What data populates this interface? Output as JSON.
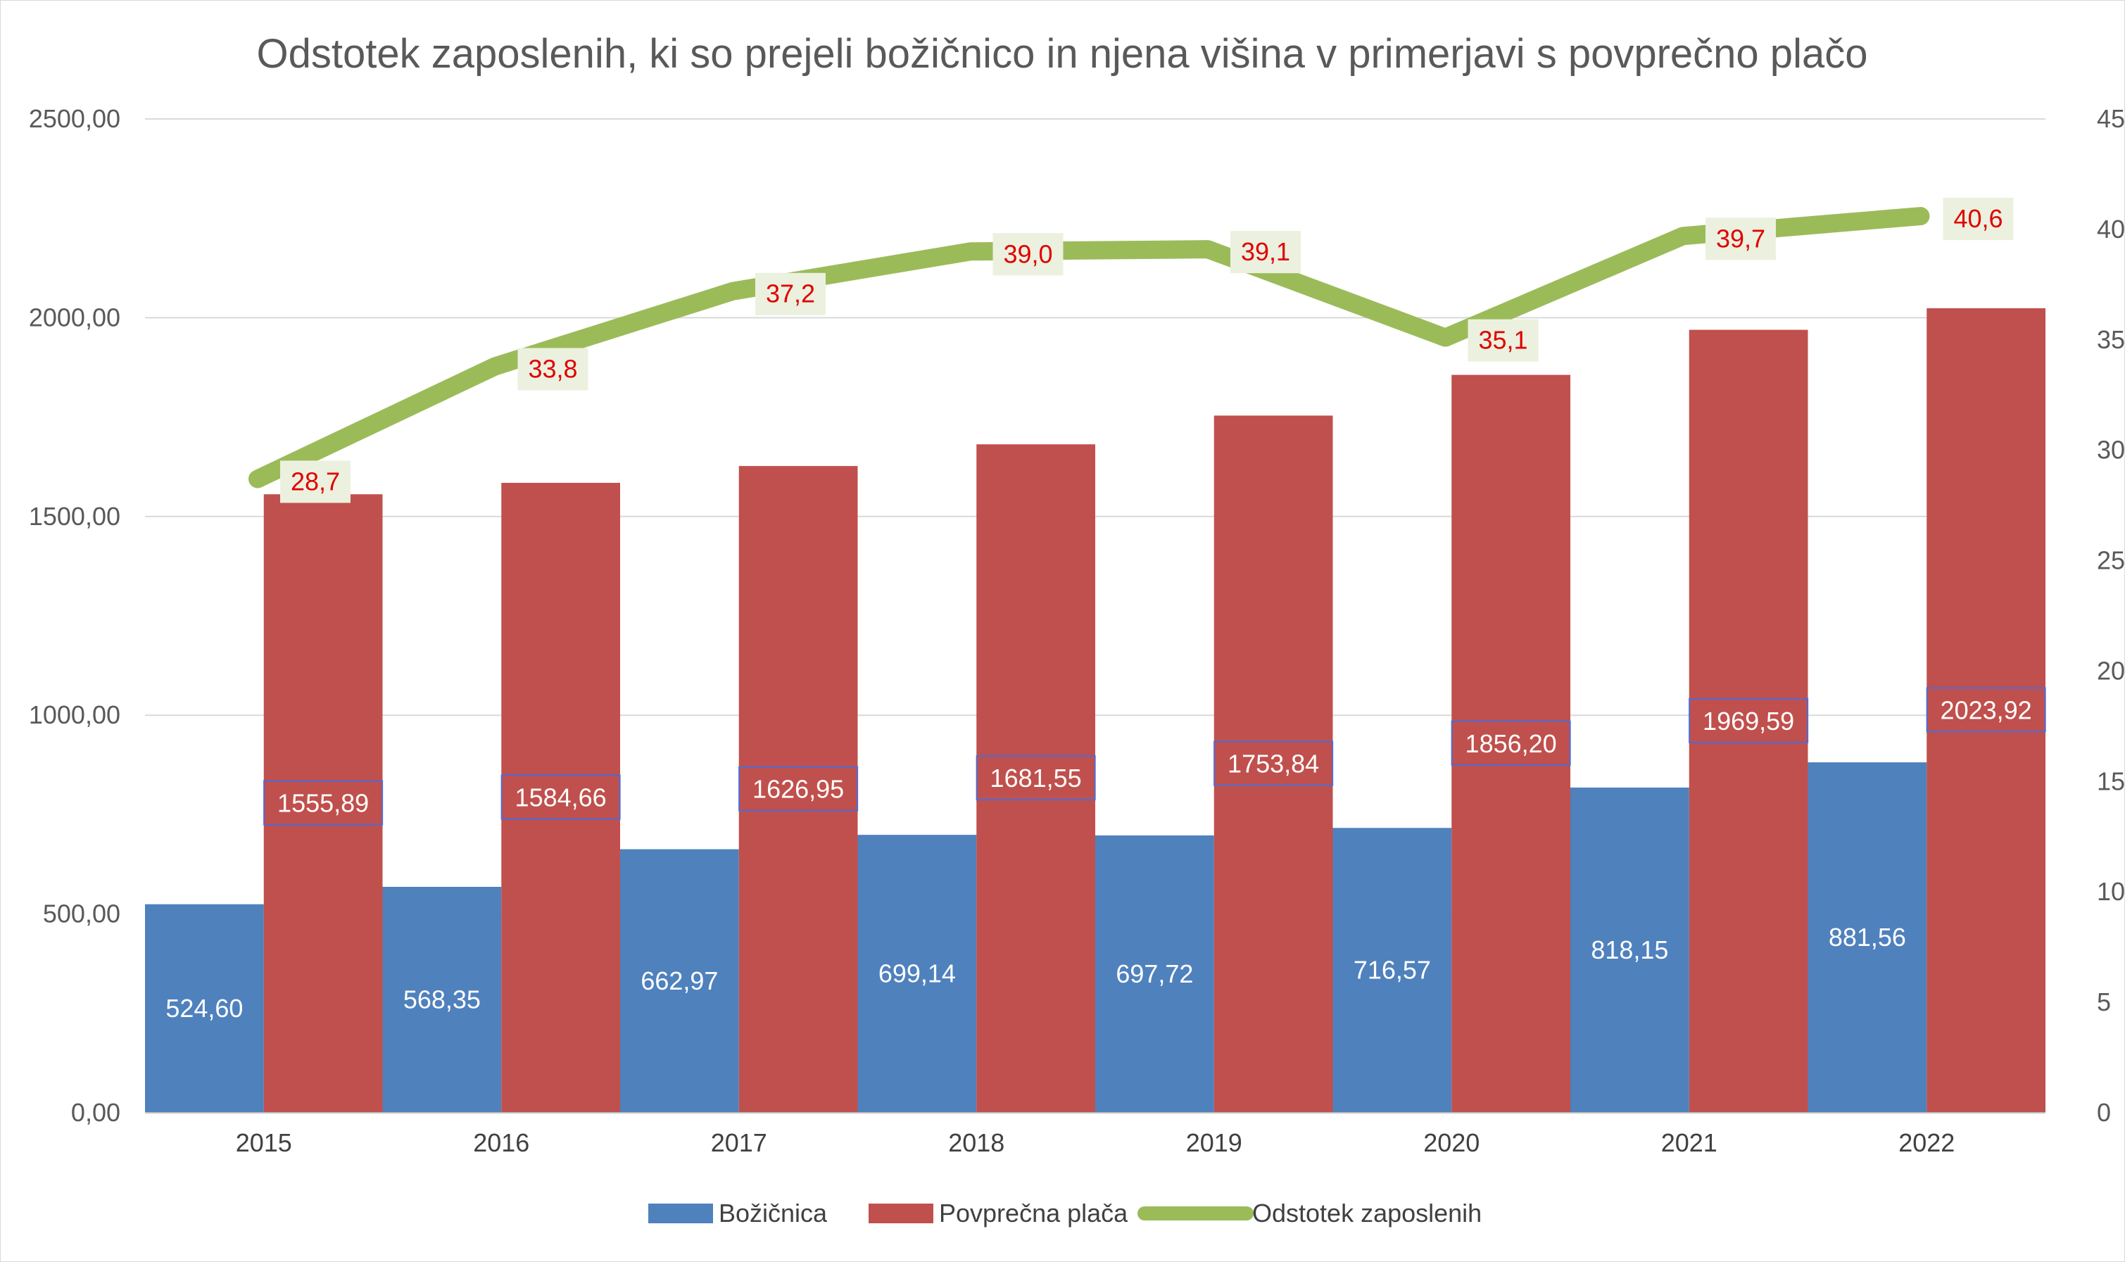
{
  "chart_data": {
    "type": "bar",
    "title": "Odstotek zaposlenih, ki so prejeli božičnico in njena višina v primerjavi s povprečno plačo",
    "categories": [
      "2015",
      "2016",
      "2017",
      "2018",
      "2019",
      "2020",
      "2021",
      "2022"
    ],
    "series": [
      {
        "name": "Božičnica",
        "type": "bar",
        "axis": "left",
        "color": "#4f81bd",
        "values": [
          524.6,
          568.35,
          662.97,
          699.14,
          697.72,
          716.57,
          818.15,
          881.56
        ],
        "labels": [
          "524,60",
          "568,35",
          "662,97",
          "699,14",
          "697,72",
          "716,57",
          "818,15",
          "881,56"
        ]
      },
      {
        "name": "Povprečna plača",
        "type": "bar",
        "axis": "left",
        "color": "#c0504d",
        "values": [
          1555.89,
          1584.66,
          1626.95,
          1681.55,
          1753.84,
          1856.2,
          1969.59,
          2023.92
        ],
        "labels": [
          "1555,89",
          "1584,66",
          "1626,95",
          "1681,55",
          "1753,84",
          "1856,20",
          "1969,59",
          "2023,92"
        ]
      },
      {
        "name": "Odstotek zaposlenih",
        "type": "line",
        "axis": "right",
        "color": "#9bbb59",
        "values": [
          28.7,
          33.8,
          37.2,
          39.0,
          39.1,
          35.1,
          39.7,
          40.6
        ],
        "labels": [
          "28,7",
          "33,8",
          "37,2",
          "39,0",
          "39,1",
          "35,1",
          "39,7",
          "40,6"
        ]
      }
    ],
    "y_left": {
      "ylim": [
        0,
        2500
      ],
      "ticks": [
        0,
        500,
        1000,
        1500,
        2000,
        2500
      ],
      "tick_labels": [
        "0,00",
        "500,00",
        "1000,00",
        "1500,00",
        "2000,00",
        "2500,00"
      ]
    },
    "y_right": {
      "ylim": [
        0,
        45
      ],
      "ticks": [
        0,
        5,
        10,
        15,
        20,
        25,
        30,
        35,
        40,
        45
      ],
      "tick_labels": [
        "0",
        "5",
        "10",
        "15",
        "20",
        "25",
        "30",
        "35",
        "40",
        "45"
      ]
    },
    "grid": true,
    "legend_position": "bottom",
    "label_colors": {
      "line_label_text": "#e00000",
      "line_label_fill": "#ebf1de",
      "bar_label_border": "#4f6bd6"
    }
  }
}
